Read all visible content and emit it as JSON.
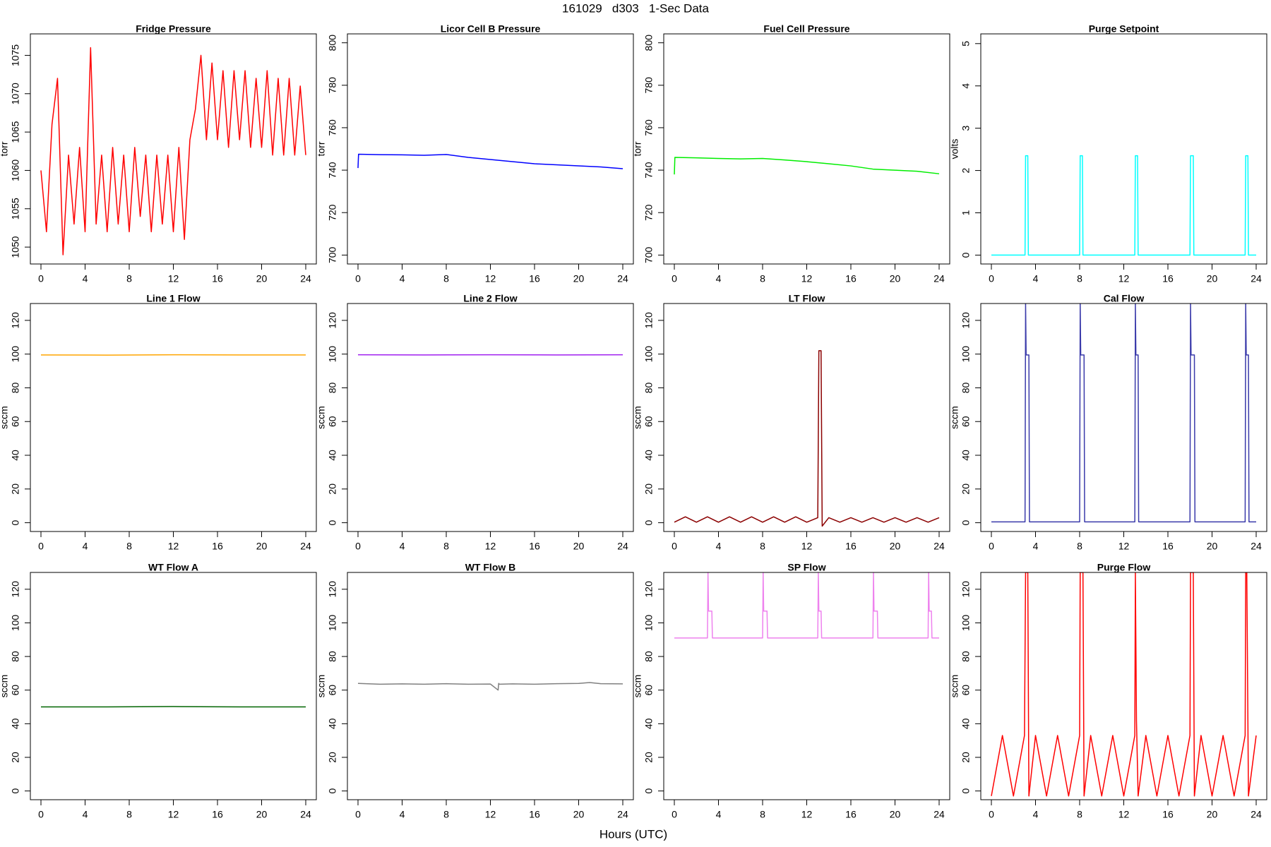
{
  "title": "161029   d303   1-Sec Data",
  "xlabel": "Hours (UTC)",
  "chart_data": [
    {
      "type": "line",
      "title": "Fridge Pressure",
      "ylabel": "torr",
      "color": "#ff0000",
      "xlim": [
        -0.96,
        24.96
      ],
      "xticks": [
        0,
        4,
        8,
        12,
        16,
        20,
        24
      ],
      "ylim": [
        1047.8,
        1077.8
      ],
      "yticks": [
        1050,
        1055,
        1060,
        1065,
        1070,
        1075
      ],
      "x": [
        0,
        0.5,
        1,
        1.5,
        2,
        2.5,
        3,
        3.5,
        4,
        4.5,
        5,
        5.5,
        6,
        6.5,
        7,
        7.5,
        8,
        8.5,
        9,
        9.5,
        10,
        10.5,
        11,
        11.5,
        12,
        12.5,
        13,
        13.5,
        14,
        14.5,
        15,
        15.5,
        16,
        16.5,
        17,
        17.5,
        18,
        18.5,
        19,
        19.5,
        20,
        20.5,
        21,
        21.5,
        22,
        22.5,
        23,
        23.5,
        24
      ],
      "values": [
        1060,
        1052,
        1066,
        1072,
        1049,
        1062,
        1053,
        1063,
        1052,
        1076,
        1053,
        1062,
        1052,
        1063,
        1053,
        1062,
        1052,
        1063,
        1054,
        1062,
        1052,
        1062,
        1053,
        1062,
        1052,
        1063,
        1051,
        1064,
        1068,
        1075,
        1064,
        1074,
        1064,
        1073,
        1063,
        1073,
        1064,
        1073,
        1063,
        1072,
        1063,
        1073,
        1062,
        1072,
        1062,
        1072,
        1062,
        1071,
        1062
      ]
    },
    {
      "type": "line",
      "title": "Licor Cell B Pressure",
      "ylabel": "torr",
      "color": "#0000ff",
      "xlim": [
        -0.96,
        24.96
      ],
      "xticks": [
        0,
        4,
        8,
        12,
        16,
        20,
        24
      ],
      "ylim": [
        695.8,
        804.2
      ],
      "yticks": [
        700,
        720,
        740,
        760,
        780,
        800
      ],
      "x": [
        0,
        0.05,
        2,
        4,
        6,
        8,
        10,
        12,
        14,
        16,
        18,
        20,
        22,
        24
      ],
      "values": [
        741,
        747.5,
        747.3,
        747.2,
        747,
        747.4,
        746,
        745,
        744,
        743,
        742.5,
        742,
        741.5,
        740.7
      ]
    },
    {
      "type": "line",
      "title": "Fuel Cell Pressure",
      "ylabel": "torr",
      "color": "#00ee00",
      "xlim": [
        -0.96,
        24.96
      ],
      "xticks": [
        0,
        4,
        8,
        12,
        16,
        20,
        24
      ],
      "ylim": [
        695.8,
        804.2
      ],
      "yticks": [
        700,
        720,
        740,
        760,
        780,
        800
      ],
      "x": [
        0,
        0.05,
        2,
        4,
        6,
        8,
        10,
        12,
        14,
        16,
        18,
        20,
        22,
        24
      ],
      "values": [
        738,
        746,
        745.8,
        745.5,
        745.3,
        745.5,
        744.8,
        744,
        743,
        742,
        740.5,
        740,
        739.5,
        738.3
      ]
    },
    {
      "type": "line",
      "title": "Purge Setpoint",
      "ylabel": "volts",
      "color": "#00ffff",
      "xlim": [
        -0.96,
        24.96
      ],
      "xticks": [
        0,
        4,
        8,
        12,
        16,
        20,
        24
      ],
      "ylim": [
        -0.21,
        5.23
      ],
      "yticks": [
        0,
        1,
        2,
        3,
        4,
        5
      ],
      "x": [
        0,
        3.05,
        3.1,
        3.3,
        3.35,
        8.0,
        8.05,
        8.25,
        8.3,
        13.0,
        13.05,
        13.25,
        13.3,
        18.0,
        18.05,
        18.3,
        18.35,
        23.0,
        23.05,
        23.25,
        23.3,
        24
      ],
      "values": [
        0,
        0,
        2.35,
        2.35,
        0,
        0,
        2.35,
        2.35,
        0,
        0,
        2.35,
        2.35,
        0,
        0,
        2.35,
        2.35,
        0,
        0,
        2.35,
        2.35,
        0,
        0
      ]
    },
    {
      "type": "line",
      "title": "Line 1 Flow",
      "ylabel": "sccm",
      "color": "#ffa500",
      "xlim": [
        -0.96,
        24.96
      ],
      "xticks": [
        0,
        4,
        8,
        12,
        16,
        20,
        24
      ],
      "ylim": [
        -5.2,
        130
      ],
      "yticks": [
        0,
        20,
        40,
        60,
        80,
        100,
        120
      ],
      "x": [
        0,
        6,
        12,
        18,
        24
      ],
      "values": [
        99.5,
        99.4,
        99.6,
        99.5,
        99.5
      ]
    },
    {
      "type": "line",
      "title": "Line 2 Flow",
      "ylabel": "sccm",
      "color": "#a020f0",
      "xlim": [
        -0.96,
        24.96
      ],
      "xticks": [
        0,
        4,
        8,
        12,
        16,
        20,
        24
      ],
      "ylim": [
        -5.2,
        130
      ],
      "yticks": [
        0,
        20,
        40,
        60,
        80,
        100,
        120
      ],
      "x": [
        0,
        6,
        12,
        18,
        24
      ],
      "values": [
        99.6,
        99.5,
        99.6,
        99.5,
        99.6
      ]
    },
    {
      "type": "line",
      "title": "LT Flow",
      "ylabel": "sccm",
      "color": "#8b0000",
      "xlim": [
        -0.96,
        24.96
      ],
      "xticks": [
        0,
        4,
        8,
        12,
        16,
        20,
        24
      ],
      "ylim": [
        -5.2,
        130
      ],
      "yticks": [
        0,
        20,
        40,
        60,
        80,
        100,
        120
      ],
      "x": [
        0,
        1,
        2,
        3,
        4,
        5,
        6,
        7,
        8,
        9,
        10,
        11,
        12,
        13,
        13.1,
        13.3,
        13.4,
        14,
        15,
        16,
        17,
        18,
        19,
        20,
        21,
        22,
        23,
        24
      ],
      "values": [
        0.3,
        3.5,
        0.3,
        3.5,
        0.3,
        3.5,
        0.3,
        3.5,
        0.3,
        3.5,
        0.3,
        3.5,
        0.3,
        3,
        102,
        102,
        -2,
        3,
        0.3,
        3,
        0.3,
        3,
        0.3,
        3,
        0.3,
        3,
        0.3,
        3
      ]
    },
    {
      "type": "line",
      "title": "Cal Flow",
      "ylabel": "sccm",
      "color": "#3a3aaa",
      "xlim": [
        -0.96,
        24.96
      ],
      "xticks": [
        0,
        4,
        8,
        12,
        16,
        20,
        24
      ],
      "ylim": [
        -5.2,
        130
      ],
      "yticks": [
        0,
        20,
        40,
        60,
        80,
        100,
        120
      ],
      "x": [
        0,
        3.05,
        3.1,
        3.15,
        3.4,
        3.45,
        8.0,
        8.05,
        8.1,
        8.4,
        8.45,
        13.0,
        13.05,
        13.1,
        13.3,
        13.35,
        18.0,
        18.05,
        18.1,
        18.4,
        18.45,
        23.0,
        23.05,
        23.1,
        23.3,
        23.35,
        24
      ],
      "values": [
        0.5,
        0.5,
        130,
        99.5,
        99.5,
        0.5,
        0.5,
        130,
        99.5,
        99.5,
        0.5,
        0.5,
        130,
        99.5,
        99.5,
        0.5,
        0.5,
        130,
        99.5,
        99.5,
        0.5,
        0.5,
        130,
        99.5,
        99.5,
        0.5,
        0.5
      ]
    },
    {
      "type": "line",
      "title": "WT Flow A",
      "ylabel": "sccm",
      "color": "#006400",
      "xlim": [
        -0.96,
        24.96
      ],
      "xticks": [
        0,
        4,
        8,
        12,
        16,
        20,
        24
      ],
      "ylim": [
        -5.2,
        130
      ],
      "yticks": [
        0,
        20,
        40,
        60,
        80,
        100,
        120
      ],
      "x": [
        0,
        6,
        12,
        18,
        24
      ],
      "values": [
        50,
        50,
        50.2,
        50,
        50
      ]
    },
    {
      "type": "line",
      "title": "WT Flow B",
      "ylabel": "sccm",
      "color": "#808080",
      "xlim": [
        -0.96,
        24.96
      ],
      "xticks": [
        0,
        4,
        8,
        12,
        16,
        20,
        24
      ],
      "ylim": [
        -5.2,
        130
      ],
      "yticks": [
        0,
        20,
        40,
        60,
        80,
        100,
        120
      ],
      "x": [
        0,
        2,
        4,
        6,
        8,
        10,
        12,
        12.7,
        12.75,
        12.8,
        14,
        16,
        18,
        20,
        21,
        22,
        24
      ],
      "values": [
        64,
        63.5,
        63.7,
        63.5,
        63.8,
        63.5,
        63.6,
        60,
        64,
        63.5,
        63.7,
        63.5,
        63.8,
        64,
        64.5,
        63.8,
        63.7
      ]
    },
    {
      "type": "line",
      "title": "SP Flow",
      "ylabel": "sccm",
      "color": "#ee82ee",
      "xlim": [
        -0.96,
        24.96
      ],
      "xticks": [
        0,
        4,
        8,
        12,
        16,
        20,
        24
      ],
      "ylim": [
        -5.2,
        130
      ],
      "yticks": [
        0,
        20,
        40,
        60,
        80,
        100,
        120
      ],
      "x": [
        0,
        3.0,
        3.05,
        3.1,
        3.4,
        3.45,
        8.0,
        8.05,
        8.1,
        8.4,
        8.45,
        13.0,
        13.05,
        13.1,
        13.3,
        13.35,
        18.0,
        18.05,
        18.1,
        18.4,
        18.45,
        23.0,
        23.05,
        23.1,
        23.3,
        23.35,
        24
      ],
      "values": [
        91,
        91,
        130,
        107,
        107,
        91,
        91,
        130,
        107,
        107,
        91,
        91,
        130,
        107,
        107,
        91,
        91,
        130,
        107,
        107,
        91,
        91,
        130,
        107,
        107,
        91,
        91
      ]
    },
    {
      "type": "line",
      "title": "Purge Flow",
      "ylabel": "sccm",
      "color": "#ff0000",
      "xlim": [
        -0.96,
        24.96
      ],
      "xticks": [
        0,
        4,
        8,
        12,
        16,
        20,
        24
      ],
      "ylim": [
        -5.2,
        130
      ],
      "yticks": [
        0,
        20,
        40,
        60,
        80,
        100,
        120
      ],
      "x": [
        0,
        1,
        2,
        3,
        3.1,
        3.3,
        3.4,
        4,
        5,
        6,
        7,
        8,
        8.05,
        8.3,
        8.4,
        9,
        10,
        11,
        12,
        13,
        13.05,
        13.15,
        13.3,
        14,
        15,
        16,
        17,
        18,
        18.05,
        18.3,
        18.4,
        19,
        20,
        21,
        22,
        23,
        23.05,
        23.15,
        23.3,
        24
      ],
      "values": [
        -3,
        33,
        -3,
        33,
        130,
        130,
        -3,
        33,
        -3,
        33,
        -3,
        33,
        130,
        130,
        -3,
        33,
        -3,
        33,
        -3,
        33,
        130,
        42,
        -3,
        33,
        -3,
        33,
        -3,
        33,
        130,
        130,
        -3,
        33,
        -3,
        33,
        -3,
        33,
        130,
        130,
        -3,
        33
      ]
    }
  ]
}
